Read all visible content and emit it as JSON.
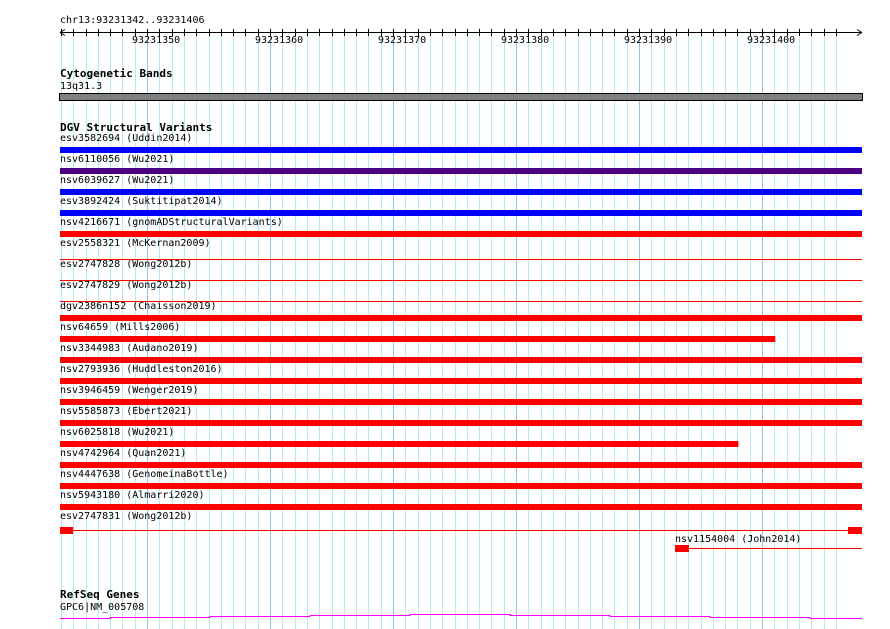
{
  "ruler": {
    "location": "chr13:93231342..93231406",
    "ticks": [
      "93231350",
      "93231360",
      "93231370",
      "93231380",
      "93231390",
      "93231400"
    ]
  },
  "cytoband": {
    "title": "Cytogenetic Bands",
    "band": "13q31.3",
    "color": "#808080"
  },
  "dgv": {
    "title": "DGV Structural Variants",
    "variants": [
      {
        "label": "esv3582694 (Uddin2014)",
        "color": "#0000ff",
        "style": "full"
      },
      {
        "label": "nsv6110056 (Wu2021)",
        "color": "#4b0082",
        "style": "full"
      },
      {
        "label": "nsv6039627 (Wu2021)",
        "color": "#0000ff",
        "style": "full"
      },
      {
        "label": "esv3892424 (Suktitipat2014)",
        "color": "#0000ff",
        "style": "full"
      },
      {
        "label": "nsv4216671 (gnomADStructuralVariants)",
        "color": "#ff0000",
        "style": "full"
      },
      {
        "label": "esv2558321 (McKernan2009)",
        "color": "#ff0000",
        "style": "line"
      },
      {
        "label": "esv2747828 (Wong2012b)",
        "color": "#ff0000",
        "style": "line"
      },
      {
        "label": "esv2747829 (Wong2012b)",
        "color": "#ff0000",
        "style": "line"
      },
      {
        "label": "dgv2386n152 (Chaisson2019)",
        "color": "#ff0000",
        "style": "full"
      },
      {
        "label": "nsv64659 (Mills2006)",
        "color": "#ff0000",
        "style": "full",
        "end": 93231401
      },
      {
        "label": "nsv3344983 (Audano2019)",
        "color": "#ff0000",
        "style": "full"
      },
      {
        "label": "nsv2793936 (Huddleston2016)",
        "color": "#ff0000",
        "style": "full"
      },
      {
        "label": "nsv3946459 (Wenger2019)",
        "color": "#ff0000",
        "style": "full"
      },
      {
        "label": "nsv5585873 (Ebert2021)",
        "color": "#ff0000",
        "style": "full"
      },
      {
        "label": "nsv6025818 (Wu2021)",
        "color": "#ff0000",
        "style": "full",
        "end": 93231398
      },
      {
        "label": "nsv4742964 (Quan2021)",
        "color": "#ff0000",
        "style": "full"
      },
      {
        "label": "nsv4447638 (GenomeinaBottle)",
        "color": "#ff0000",
        "style": "full"
      },
      {
        "label": "nsv5943180 (Almarri2020)",
        "color": "#ff0000",
        "style": "full"
      },
      {
        "label": "esv2747831 (Wong2012b)",
        "color": "#ff0000",
        "style": "split"
      }
    ],
    "extra": {
      "label": "nsv1154004 (John2014)",
      "color": "#ff0000"
    }
  },
  "refseq": {
    "title": "RefSeq Genes",
    "gene": "GPC6|NM_005708",
    "color": "#ff00ff"
  }
}
